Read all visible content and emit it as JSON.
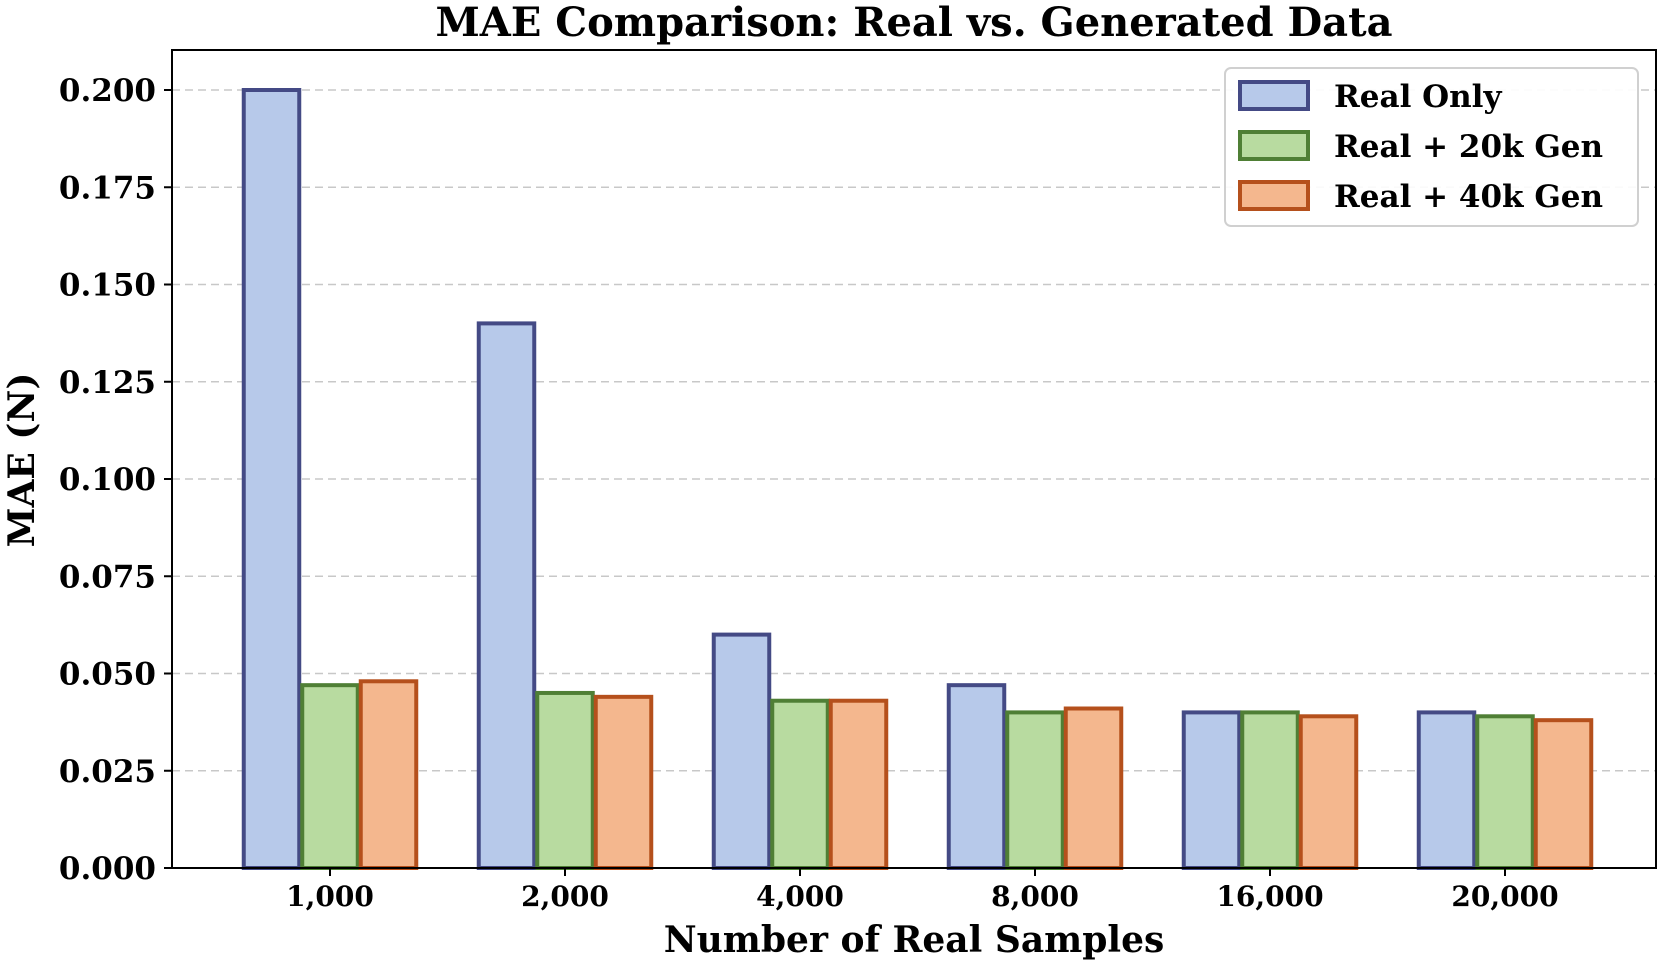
{
  "chart_data": {
    "type": "bar",
    "title": "MAE Comparison: Real vs. Generated Data",
    "xlabel": "Number of Real Samples",
    "ylabel": "MAE (N)",
    "categories": [
      "1,000",
      "2,000",
      "4,000",
      "8,000",
      "16,000",
      "20,000"
    ],
    "yticks": [
      "0.000",
      "0.025",
      "0.050",
      "0.075",
      "0.100",
      "0.125",
      "0.150",
      "0.175",
      "0.200"
    ],
    "ylim": [
      0,
      0.21
    ],
    "grid": true,
    "legend_position": "top-right",
    "series": [
      {
        "name": "Real Only",
        "fill": "#b7c9ea",
        "edge": "#444a85",
        "values": [
          0.2,
          0.14,
          0.06,
          0.047,
          0.04,
          0.04
        ]
      },
      {
        "name": "Real + 20k Gen",
        "fill": "#b8dba0",
        "edge": "#4f7f35",
        "values": [
          0.047,
          0.045,
          0.043,
          0.04,
          0.04,
          0.039
        ]
      },
      {
        "name": "Real + 40k Gen",
        "fill": "#f4b78e",
        "edge": "#b5501c",
        "values": [
          0.048,
          0.044,
          0.043,
          0.041,
          0.039,
          0.038
        ]
      }
    ]
  }
}
